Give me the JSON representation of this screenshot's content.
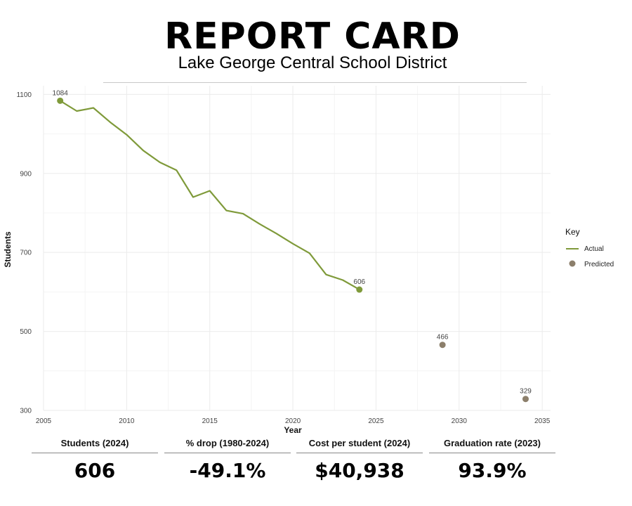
{
  "header": {
    "title": "REPORT CARD",
    "subtitle": "Lake George Central School District"
  },
  "chart_data": {
    "type": "line",
    "xlabel": "Year",
    "ylabel": "Students",
    "xlim": [
      2005,
      2035.5
    ],
    "ylim": [
      300,
      1122
    ],
    "x_ticks": [
      2005,
      2010,
      2015,
      2020,
      2025,
      2030,
      2035
    ],
    "y_ticks": [
      300,
      500,
      700,
      900,
      1100
    ],
    "grid": true,
    "legend": {
      "title": "Key",
      "position": "right"
    },
    "series": [
      {
        "name": "Actual",
        "type": "line",
        "color": "#7f9a3a",
        "x": [
          2006,
          2007,
          2008,
          2009,
          2010,
          2011,
          2012,
          2013,
          2014,
          2015,
          2016,
          2017,
          2018,
          2019,
          2020,
          2021,
          2022,
          2023,
          2024
        ],
        "y": [
          1084,
          1058,
          1066,
          1030,
          998,
          958,
          928,
          908,
          840,
          856,
          806,
          798,
          772,
          748,
          722,
          698,
          644,
          630,
          606
        ]
      },
      {
        "name": "Predicted",
        "type": "scatter",
        "color": "#8c7f6b",
        "x": [
          2029,
          2034
        ],
        "y": [
          466,
          329
        ]
      }
    ],
    "annotations": [
      {
        "x": 2006,
        "y": 1084,
        "text": "1084",
        "series": "Actual"
      },
      {
        "x": 2024,
        "y": 606,
        "text": "606",
        "series": "Actual"
      },
      {
        "x": 2029,
        "y": 466,
        "text": "466",
        "series": "Predicted"
      },
      {
        "x": 2034,
        "y": 329,
        "text": "329",
        "series": "Predicted"
      }
    ]
  },
  "stats": [
    {
      "label": "Students (2024)",
      "value": "606"
    },
    {
      "label": "% drop (1980-2024)",
      "value": "-49.1%"
    },
    {
      "label": "Cost per student (2024)",
      "value": "$40,938"
    },
    {
      "label": "Graduation rate (2023)",
      "value": "93.9%"
    }
  ]
}
